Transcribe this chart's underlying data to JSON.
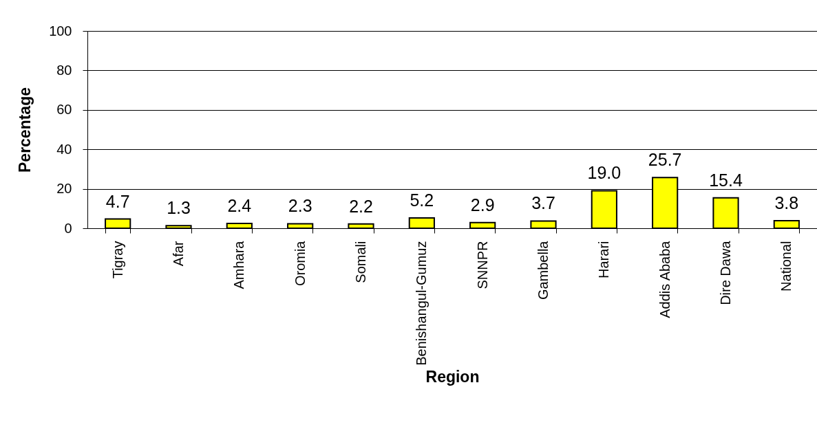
{
  "chart_data": {
    "type": "bar",
    "xlabel": "Region",
    "ylabel": "Percentage",
    "categories": [
      "Tigray",
      "Afar",
      "Amhara",
      "Oromia",
      "Somali",
      "Benishangul-Gumuz",
      "SNNPR",
      "Gambella",
      "Harari",
      "Addis Ababa",
      "Dire Dawa",
      "National"
    ],
    "values": [
      4.7,
      1.3,
      2.4,
      2.3,
      2.2,
      5.2,
      2.9,
      3.7,
      19.0,
      25.7,
      15.4,
      3.8
    ],
    "value_labels": [
      "4.7",
      "1.3",
      "2.4",
      "2.3",
      "2.2",
      "5.2",
      "2.9",
      "3.7",
      "19.0",
      "25.7",
      "15.4",
      "3.8"
    ],
    "color": "#ffff00",
    "ylim": [
      0,
      100
    ],
    "yticks": [
      0,
      20,
      40,
      60,
      80,
      100
    ],
    "grid": "y"
  }
}
